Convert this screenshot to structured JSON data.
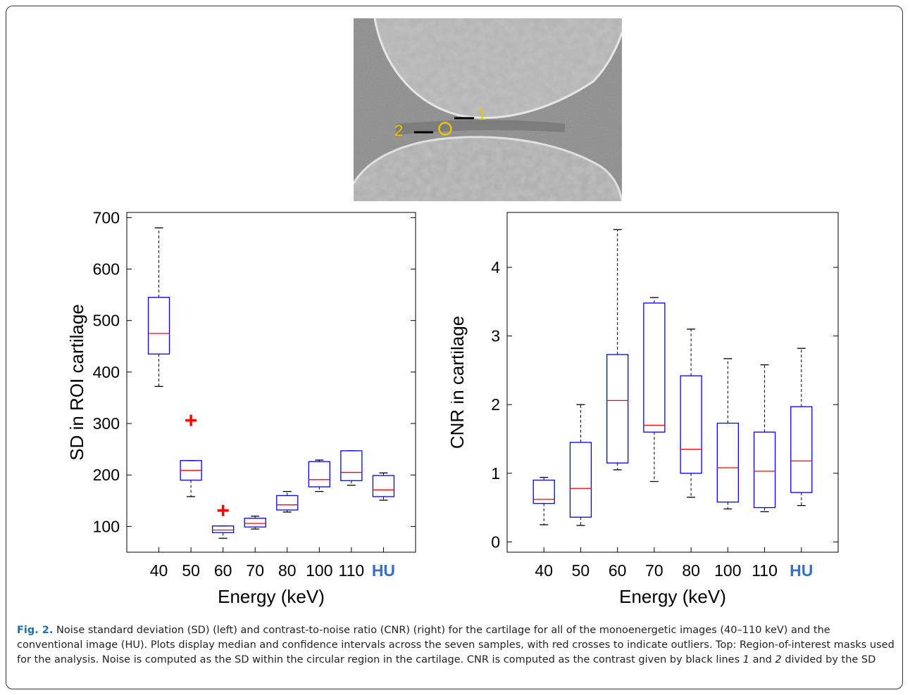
{
  "ct_image": {
    "label_1": "1",
    "label_2": "2",
    "colors": {
      "marker": "#f2c200",
      "lines": "#000000"
    }
  },
  "caption": {
    "fig_label": "Fig. 2.",
    "parts": [
      " Noise standard deviation (SD) (left) and contrast-to-noise ratio (CNR) (right) for the cartilage for all of the monoenergetic images (40–110 keV) and the conventional image (HU). Plots display median and confidence intervals across the seven samples, with red crosses to indicate outliers. Top: Region-of-interest masks used for the analysis. Noise is computed as the SD within the circular region in the cartilage. CNR is computed as the contrast given by black lines ",
      "1",
      " and ",
      "2",
      " divided by the SD"
    ]
  },
  "chart_data": [
    {
      "type": "box",
      "xlabel": "Energy (keV)",
      "ylabel": "SD in ROI cartilage",
      "categories": [
        "40",
        "50",
        "60",
        "70",
        "80",
        "100",
        "110",
        "HU"
      ],
      "highlight_category": "HU",
      "ylim": [
        50,
        710
      ],
      "yticks": [
        100,
        200,
        300,
        400,
        500,
        600,
        700
      ],
      "boxes": [
        {
          "whisker_low": 372,
          "q1": 435,
          "median": 475,
          "q3": 545,
          "whisker_high": 680
        },
        {
          "whisker_low": 158,
          "q1": 190,
          "median": 209,
          "q3": 228,
          "whisker_high": 228,
          "outliers": [
            306
          ]
        },
        {
          "whisker_low": 77,
          "q1": 88,
          "median": 93,
          "q3": 101,
          "whisker_high": 101,
          "outliers": [
            131
          ]
        },
        {
          "whisker_low": 95,
          "q1": 99,
          "median": 106,
          "q3": 116,
          "whisker_high": 120
        },
        {
          "whisker_low": 128,
          "q1": 132,
          "median": 142,
          "q3": 160,
          "whisker_high": 168
        },
        {
          "whisker_low": 168,
          "q1": 177,
          "median": 191,
          "q3": 226,
          "whisker_high": 229
        },
        {
          "whisker_low": 180,
          "q1": 189,
          "median": 205,
          "q3": 247,
          "whisker_high": 247
        },
        {
          "whisker_low": 151,
          "q1": 158,
          "median": 171,
          "q3": 199,
          "whisker_high": 204
        }
      ],
      "colors": {
        "box": "#0000ff",
        "median": "#ff0000",
        "outlier": "#ff0000",
        "whisker": "#000000",
        "highlight_label": "#3a6fc4"
      }
    },
    {
      "type": "box",
      "xlabel": "Energy (keV)",
      "ylabel": "CNR in cartilage",
      "categories": [
        "40",
        "50",
        "60",
        "70",
        "80",
        "100",
        "110",
        "HU"
      ],
      "highlight_category": "HU",
      "ylim": [
        -0.15,
        4.8
      ],
      "yticks": [
        0,
        1,
        2,
        3,
        4
      ],
      "boxes": [
        {
          "whisker_low": 0.25,
          "q1": 0.56,
          "median": 0.62,
          "q3": 0.9,
          "whisker_high": 0.94
        },
        {
          "whisker_low": 0.24,
          "q1": 0.36,
          "median": 0.78,
          "q3": 1.45,
          "whisker_high": 2.0
        },
        {
          "whisker_low": 1.05,
          "q1": 1.15,
          "median": 2.06,
          "q3": 2.73,
          "whisker_high": 4.55
        },
        {
          "whisker_low": 0.88,
          "q1": 1.6,
          "median": 1.7,
          "q3": 3.48,
          "whisker_high": 3.56
        },
        {
          "whisker_low": 0.65,
          "q1": 1.0,
          "median": 1.35,
          "q3": 2.42,
          "whisker_high": 3.1
        },
        {
          "whisker_low": 0.48,
          "q1": 0.58,
          "median": 1.08,
          "q3": 1.73,
          "whisker_high": 2.67
        },
        {
          "whisker_low": 0.44,
          "q1": 0.5,
          "median": 1.03,
          "q3": 1.6,
          "whisker_high": 2.58
        },
        {
          "whisker_low": 0.53,
          "q1": 0.72,
          "median": 1.18,
          "q3": 1.97,
          "whisker_high": 2.82
        }
      ],
      "colors": {
        "box": "#0000ff",
        "median": "#ff0000",
        "outlier": "#ff0000",
        "whisker": "#000000",
        "highlight_label": "#3a6fc4"
      }
    }
  ]
}
